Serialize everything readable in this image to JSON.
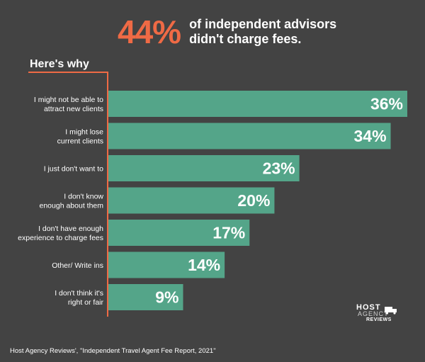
{
  "headline": {
    "percent": "44%",
    "text": "of independent advisors didn't charge fees."
  },
  "subtitle": "Here's why",
  "source": "Host Agency Reviews', \"Independent Travel Agent Fee Report, 2021\"",
  "logo": {
    "line1": "HOST",
    "line2": "AGENCY",
    "line3": "REVIEWS"
  },
  "colors": {
    "background": "#434343",
    "bar": "#54a589",
    "accent": "#ef6a45",
    "text": "#ffffff"
  },
  "chart_data": {
    "type": "bar",
    "orientation": "horizontal",
    "title": "",
    "categories": [
      [
        "I might not be able to",
        "attract new clients"
      ],
      [
        "I might lose",
        "current clients"
      ],
      [
        "I just don't want to"
      ],
      [
        "I don't know",
        "enough about them"
      ],
      [
        "I don't have enough",
        "experience to charge fees"
      ],
      [
        "Other/ Write ins"
      ],
      [
        "I don't think it's",
        "right or fair"
      ]
    ],
    "values": [
      36,
      34,
      23,
      20,
      17,
      14,
      9
    ],
    "value_labels": [
      "36%",
      "34%",
      "23%",
      "20%",
      "17%",
      "14%",
      "9%"
    ],
    "xlim": [
      0,
      36
    ],
    "grid": false,
    "legend": "none"
  }
}
